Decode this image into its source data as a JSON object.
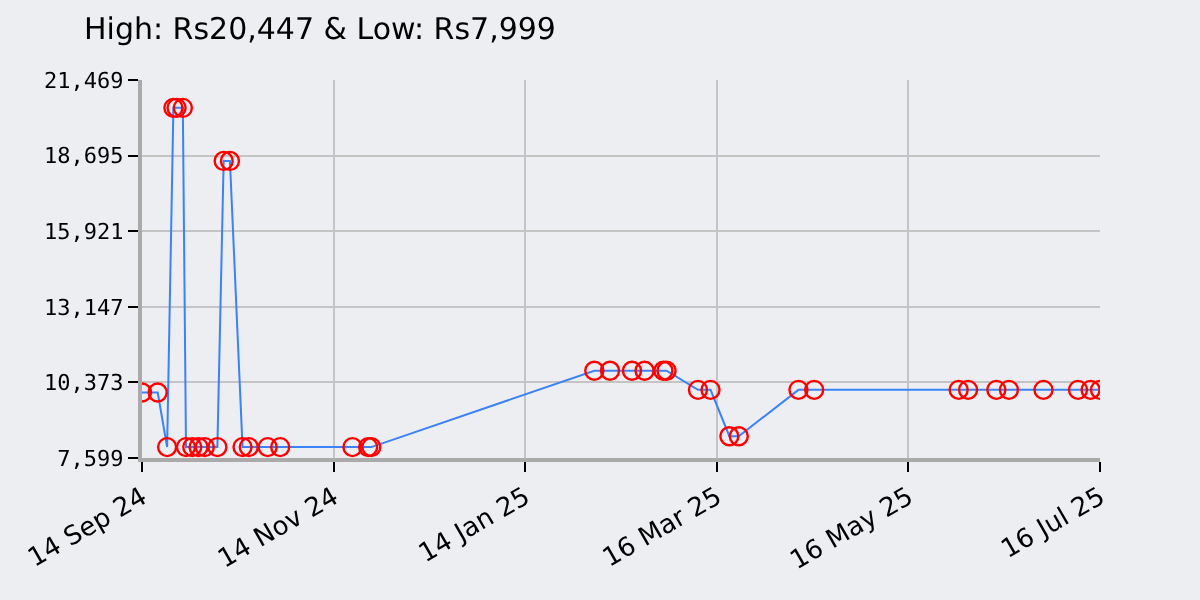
{
  "chart_data": {
    "type": "line",
    "title": "High: Rs20,447 & Low: Rs7,999",
    "x": [
      "2024-09-14",
      "2024-09-19",
      "2024-09-22",
      "2024-09-24",
      "2024-09-25",
      "2024-09-27",
      "2024-09-28",
      "2024-09-30",
      "2024-10-02",
      "2024-10-04",
      "2024-10-08",
      "2024-10-10",
      "2024-10-12",
      "2024-10-16",
      "2024-10-18",
      "2024-10-24",
      "2024-10-28",
      "2024-11-20",
      "2024-11-25",
      "2024-11-26",
      "2025-02-05",
      "2025-02-10",
      "2025-02-17",
      "2025-02-21",
      "2025-02-27",
      "2025-02-28",
      "2025-03-10",
      "2025-03-14",
      "2025-03-20",
      "2025-03-23",
      "2025-04-11",
      "2025-04-16",
      "2025-06-01",
      "2025-06-04",
      "2025-06-13",
      "2025-06-17",
      "2025-06-28",
      "2025-07-09",
      "2025-07-13",
      "2025-07-16"
    ],
    "series": [
      {
        "color": "#3b82f6",
        "values": [
          10000,
          10000,
          7999,
          20447,
          20447,
          20447,
          7999,
          7999,
          7999,
          7999,
          7999,
          18500,
          18500,
          7999,
          7999,
          7999,
          7999,
          7999,
          7999,
          7999,
          10800,
          10800,
          10800,
          10800,
          10800,
          10800,
          10100,
          10100,
          8400,
          8400,
          10100,
          10100,
          10100,
          10100,
          10100,
          10100,
          10100,
          10100,
          10100,
          10100
        ]
      }
    ],
    "marker": "circle",
    "grid": true,
    "xlim": [
      "2024-09-14",
      "2025-07-16"
    ],
    "xticks": [
      {
        "value": "2024-09-14",
        "label": "14 Sep 24"
      },
      {
        "value": "2024-11-14",
        "label": "14 Nov 24"
      },
      {
        "value": "2025-01-14",
        "label": "14 Jan 25"
      },
      {
        "value": "2025-03-16",
        "label": "16 Mar 25"
      },
      {
        "value": "2025-05-16",
        "label": "16 May 25"
      },
      {
        "value": "2025-07-16",
        "label": "16 Jul 25"
      }
    ],
    "ylim": [
      7599,
      21469
    ],
    "yticks": [
      {
        "value": 7599,
        "label": "7,599"
      },
      {
        "value": 10373,
        "label": "10,373"
      },
      {
        "value": 13147,
        "label": "13,147"
      },
      {
        "value": 15921,
        "label": "15,921"
      },
      {
        "value": 18695,
        "label": "18,695"
      },
      {
        "value": 21469,
        "label": "21,469"
      }
    ]
  }
}
